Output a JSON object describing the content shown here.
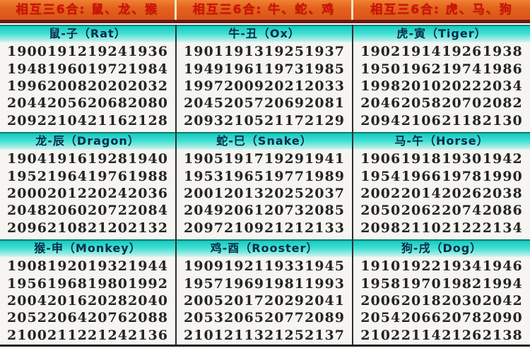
{
  "colors": {
    "header_orange": "#e4631c",
    "header_text_red": "#d01208",
    "separator_maroon": "#6b1b10",
    "band_teal": "#3fe0d4",
    "band_border_teal": "#0a7d74",
    "band_text_navy": "#0b2b4a",
    "year_text": "#242424",
    "column_divider": "#2d2d2d"
  },
  "table": {
    "columns": [
      {
        "header": "相互三6合: 鼠、龙、猴",
        "sections": [
          {
            "label": "鼠-子（Rat）",
            "years": [
              "1900",
              "1912",
              "1924",
              "1936",
              "1948",
              "1960",
              "1972",
              "1984",
              "1996",
              "2008",
              "2020",
              "2032",
              "2044",
              "2056",
              "2068",
              "2080",
              "2092",
              "2104",
              "2116",
              "2128"
            ]
          },
          {
            "label": "龙-辰（Dragon）",
            "years": [
              "1904",
              "1916",
              "1928",
              "1940",
              "1952",
              "1964",
              "1976",
              "1988",
              "2000",
              "2012",
              "2024",
              "2036",
              "2048",
              "2060",
              "2072",
              "2084",
              "2096",
              "2108",
              "2120",
              "2132"
            ]
          },
          {
            "label": "猴-申（Monkey）",
            "years": [
              "1908",
              "1920",
              "1932",
              "1944",
              "1956",
              "1968",
              "1980",
              "1992",
              "2004",
              "2016",
              "2028",
              "2040",
              "2052",
              "2064",
              "2076",
              "2088",
              "2100",
              "2112",
              "2124",
              "2136"
            ]
          }
        ]
      },
      {
        "header": "相互三6合: 牛、蛇、鸡",
        "sections": [
          {
            "label": "牛-丑（Ox）",
            "years": [
              "1901",
              "1913",
              "1925",
              "1937",
              "1949",
              "1961",
              "1973",
              "1985",
              "1997",
              "2009",
              "2021",
              "2033",
              "2045",
              "2057",
              "2069",
              "2081",
              "2093",
              "2105",
              "2117",
              "2129"
            ]
          },
          {
            "label": "蛇-巳（Snake）",
            "years": [
              "1905",
              "1917",
              "1929",
              "1941",
              "1953",
              "1965",
              "1977",
              "1989",
              "2001",
              "2013",
              "2025",
              "2037",
              "2049",
              "2061",
              "2073",
              "2085",
              "2097",
              "2109",
              "2121",
              "2133"
            ]
          },
          {
            "label": "鸡-酉（Rooster）",
            "years": [
              "1909",
              "1921",
              "1933",
              "1945",
              "1957",
              "1969",
              "1981",
              "1993",
              "2005",
              "2017",
              "2029",
              "2041",
              "2053",
              "2065",
              "2077",
              "2089",
              "2101",
              "2113",
              "2125",
              "2137"
            ]
          }
        ]
      },
      {
        "header": "相互三6合: 虎、马、狗",
        "sections": [
          {
            "label": "虎-寅（Tiger）",
            "years": [
              "1902",
              "1914",
              "1926",
              "1938",
              "1950",
              "1962",
              "1974",
              "1986",
              "1998",
              "2010",
              "2022",
              "2034",
              "2046",
              "2058",
              "2070",
              "2082",
              "2094",
              "2106",
              "2118",
              "2130"
            ]
          },
          {
            "label": "马-午（Horse）",
            "years": [
              "1906",
              "1918",
              "1930",
              "1942",
              "1954",
              "1966",
              "1978",
              "1990",
              "2002",
              "2014",
              "2026",
              "2038",
              "2050",
              "2062",
              "2074",
              "2086",
              "2098",
              "2110",
              "2122",
              "2134"
            ]
          },
          {
            "label": "狗-戌（Dog）",
            "years": [
              "1910",
              "1922",
              "1934",
              "1946",
              "1958",
              "1970",
              "1982",
              "1994",
              "2006",
              "2018",
              "2030",
              "2042",
              "2054",
              "2066",
              "2078",
              "2090",
              "2102",
              "2114",
              "2126",
              "2138"
            ]
          }
        ]
      }
    ]
  }
}
